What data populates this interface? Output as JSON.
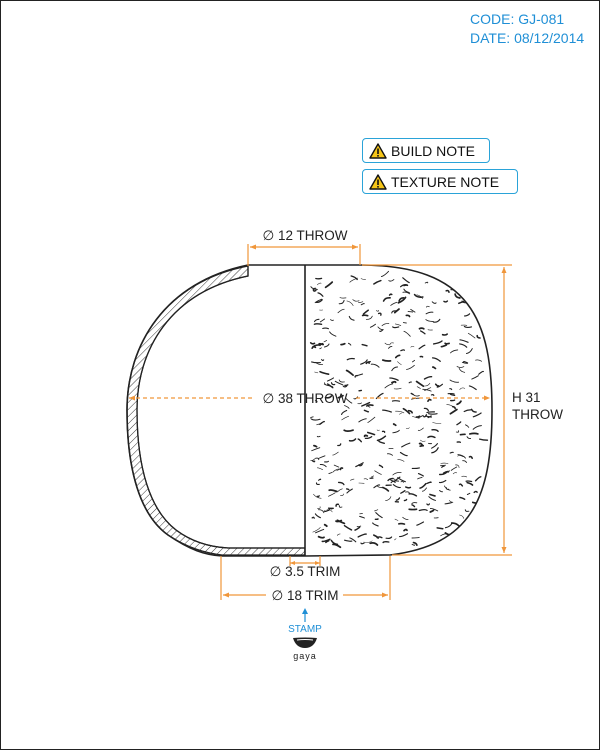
{
  "meta": {
    "code": "CODE: GJ-081",
    "date": "DATE: 08/12/2014"
  },
  "notes": {
    "build": "BUILD NOTE",
    "texture": "TEXTURE NOTE"
  },
  "dimensions": {
    "top": "∅ 12 THROW",
    "middle": "∅ 38 THROW",
    "height_line1": "H 31",
    "height_line2": "THROW",
    "foot": "∅ 3.5 TRIM",
    "base": "∅ 18 TRIM"
  },
  "stamp": {
    "label": "STAMP",
    "logo_text": "gaya"
  },
  "colors": {
    "accent": "#1f8fd6",
    "dimension": "#f0963a",
    "outline": "#222222"
  },
  "icons": [
    "warning-icon",
    "stamp-arrow-icon",
    "gaya-logo"
  ]
}
